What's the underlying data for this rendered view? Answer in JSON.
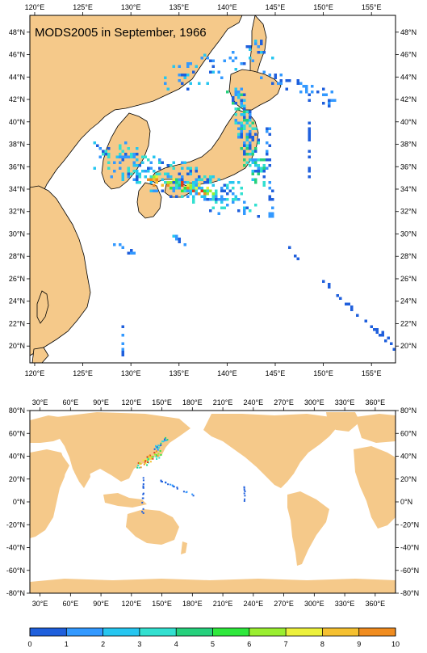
{
  "top_map": {
    "title": "MODS2005 in September, 1966",
    "lon_labels": [
      "120°E",
      "125°E",
      "130°E",
      "135°E",
      "140°E",
      "145°E",
      "150°E",
      "155°E"
    ],
    "lat_labels": [
      "48°N",
      "46°N",
      "44°N",
      "42°N",
      "40°N",
      "38°N",
      "36°N",
      "34°N",
      "32°N",
      "30°N",
      "28°N",
      "26°N",
      "24°N",
      "22°N",
      "20°N"
    ],
    "lon_range": [
      119.5,
      157.5
    ],
    "lat_range": [
      18.5,
      49.5
    ]
  },
  "bottom_map": {
    "lon_labels": [
      "30°E",
      "60°E",
      "90°E",
      "120°E",
      "150°E",
      "180°E",
      "210°E",
      "240°E",
      "270°E",
      "300°E",
      "330°E",
      "360°E"
    ],
    "lat_labels": [
      "80°N",
      "60°N",
      "40°N",
      "20°N",
      "0°N",
      "-20°N",
      "-40°N",
      "-60°N",
      "-80°N"
    ],
    "lon_range": [
      20,
      380
    ],
    "lat_range": [
      -80,
      80
    ]
  },
  "colorbar": {
    "labels": [
      "0",
      "1",
      "2",
      "3",
      "4",
      "5",
      "6",
      "7",
      "8",
      "9",
      "10"
    ],
    "colors": [
      "#1f5fdc",
      "#3399ff",
      "#26c6f0",
      "#33e0d0",
      "#26d07c",
      "#2ee83c",
      "#9aee30",
      "#ecf03c",
      "#f5c030",
      "#f08c20",
      "#e23a18"
    ]
  },
  "land_color": "#f5c98a"
}
